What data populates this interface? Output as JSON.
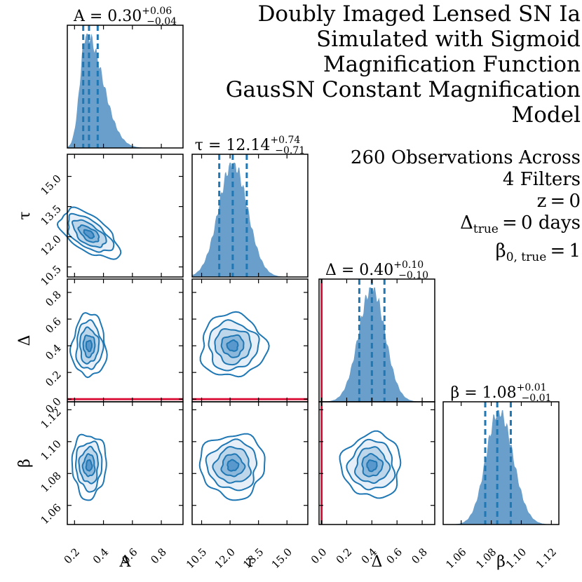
{
  "title_lines": [
    "Doubly Imaged Lensed SN Ia",
    "Simulated with Sigmoid",
    "Magnification Function",
    "GausSN Constant Magnification",
    "Model"
  ],
  "info": {
    "line1": "260 Observations Across",
    "line2": "4 Filters",
    "z_label": "z = 0",
    "delta_true_sym": "Δ",
    "delta_true_sub": "true",
    "delta_true_val": " = 0 days",
    "beta_true_sym": "β",
    "beta_true_sub": "0, true",
    "beta_true_val": " = 1"
  },
  "colors": {
    "fill": "#6a9fcb",
    "line": "#1f77b4",
    "truth": "#dc143c",
    "contour_fill": "#2f7fbf"
  },
  "chart_data": {
    "type": "corner",
    "params": [
      {
        "key": "A",
        "label": "A",
        "title_prefix": "A = ",
        "median": "0.30",
        "plus": "+0.06",
        "minus": "−0.04",
        "range": [
          0.15,
          0.95
        ],
        "ticks": [
          0.2,
          0.4,
          0.6,
          0.8
        ],
        "tick_labels": [
          "0.2",
          "0.4",
          "0.6",
          "0.8"
        ],
        "mean": 0.3,
        "quantiles": [
          0.26,
          0.3,
          0.36
        ],
        "hist_peak": 0.28
      },
      {
        "key": "tau",
        "label": "τ",
        "title_prefix": "τ = ",
        "median": "12.14",
        "plus": "+0.74",
        "minus": "−0.71",
        "range": [
          10.0,
          16.1
        ],
        "ticks": [
          10.5,
          12.0,
          13.5,
          15.0
        ],
        "tick_labels": [
          "10.5",
          "12.0",
          "13.5",
          "15.0"
        ],
        "mean": 12.14,
        "quantiles": [
          11.43,
          12.14,
          12.88
        ],
        "hist_peak": 12.14
      },
      {
        "key": "delta",
        "label": "Δ",
        "title_prefix": "Δ = ",
        "median": "0.40",
        "plus": "+0.10",
        "minus": "−0.10",
        "range": [
          -0.02,
          0.9
        ],
        "ticks": [
          0.0,
          0.2,
          0.4,
          0.6,
          0.8
        ],
        "tick_labels": [
          "0.0",
          "0.2",
          "0.4",
          "0.6",
          "0.8"
        ],
        "mean": 0.4,
        "quantiles": [
          0.3,
          0.4,
          0.5
        ],
        "truth": 0.0
      },
      {
        "key": "beta",
        "label": "β",
        "title_prefix": "β = ",
        "median": "1.08",
        "plus": "+0.01",
        "minus": "−0.01",
        "range": [
          1.048,
          1.125
        ],
        "ticks": [
          1.06,
          1.08,
          1.1,
          1.12
        ],
        "tick_labels": [
          "1.06",
          "1.08",
          "1.10",
          "1.12"
        ],
        "mean": 1.085,
        "quantiles": [
          1.076,
          1.084,
          1.093
        ]
      }
    ]
  }
}
